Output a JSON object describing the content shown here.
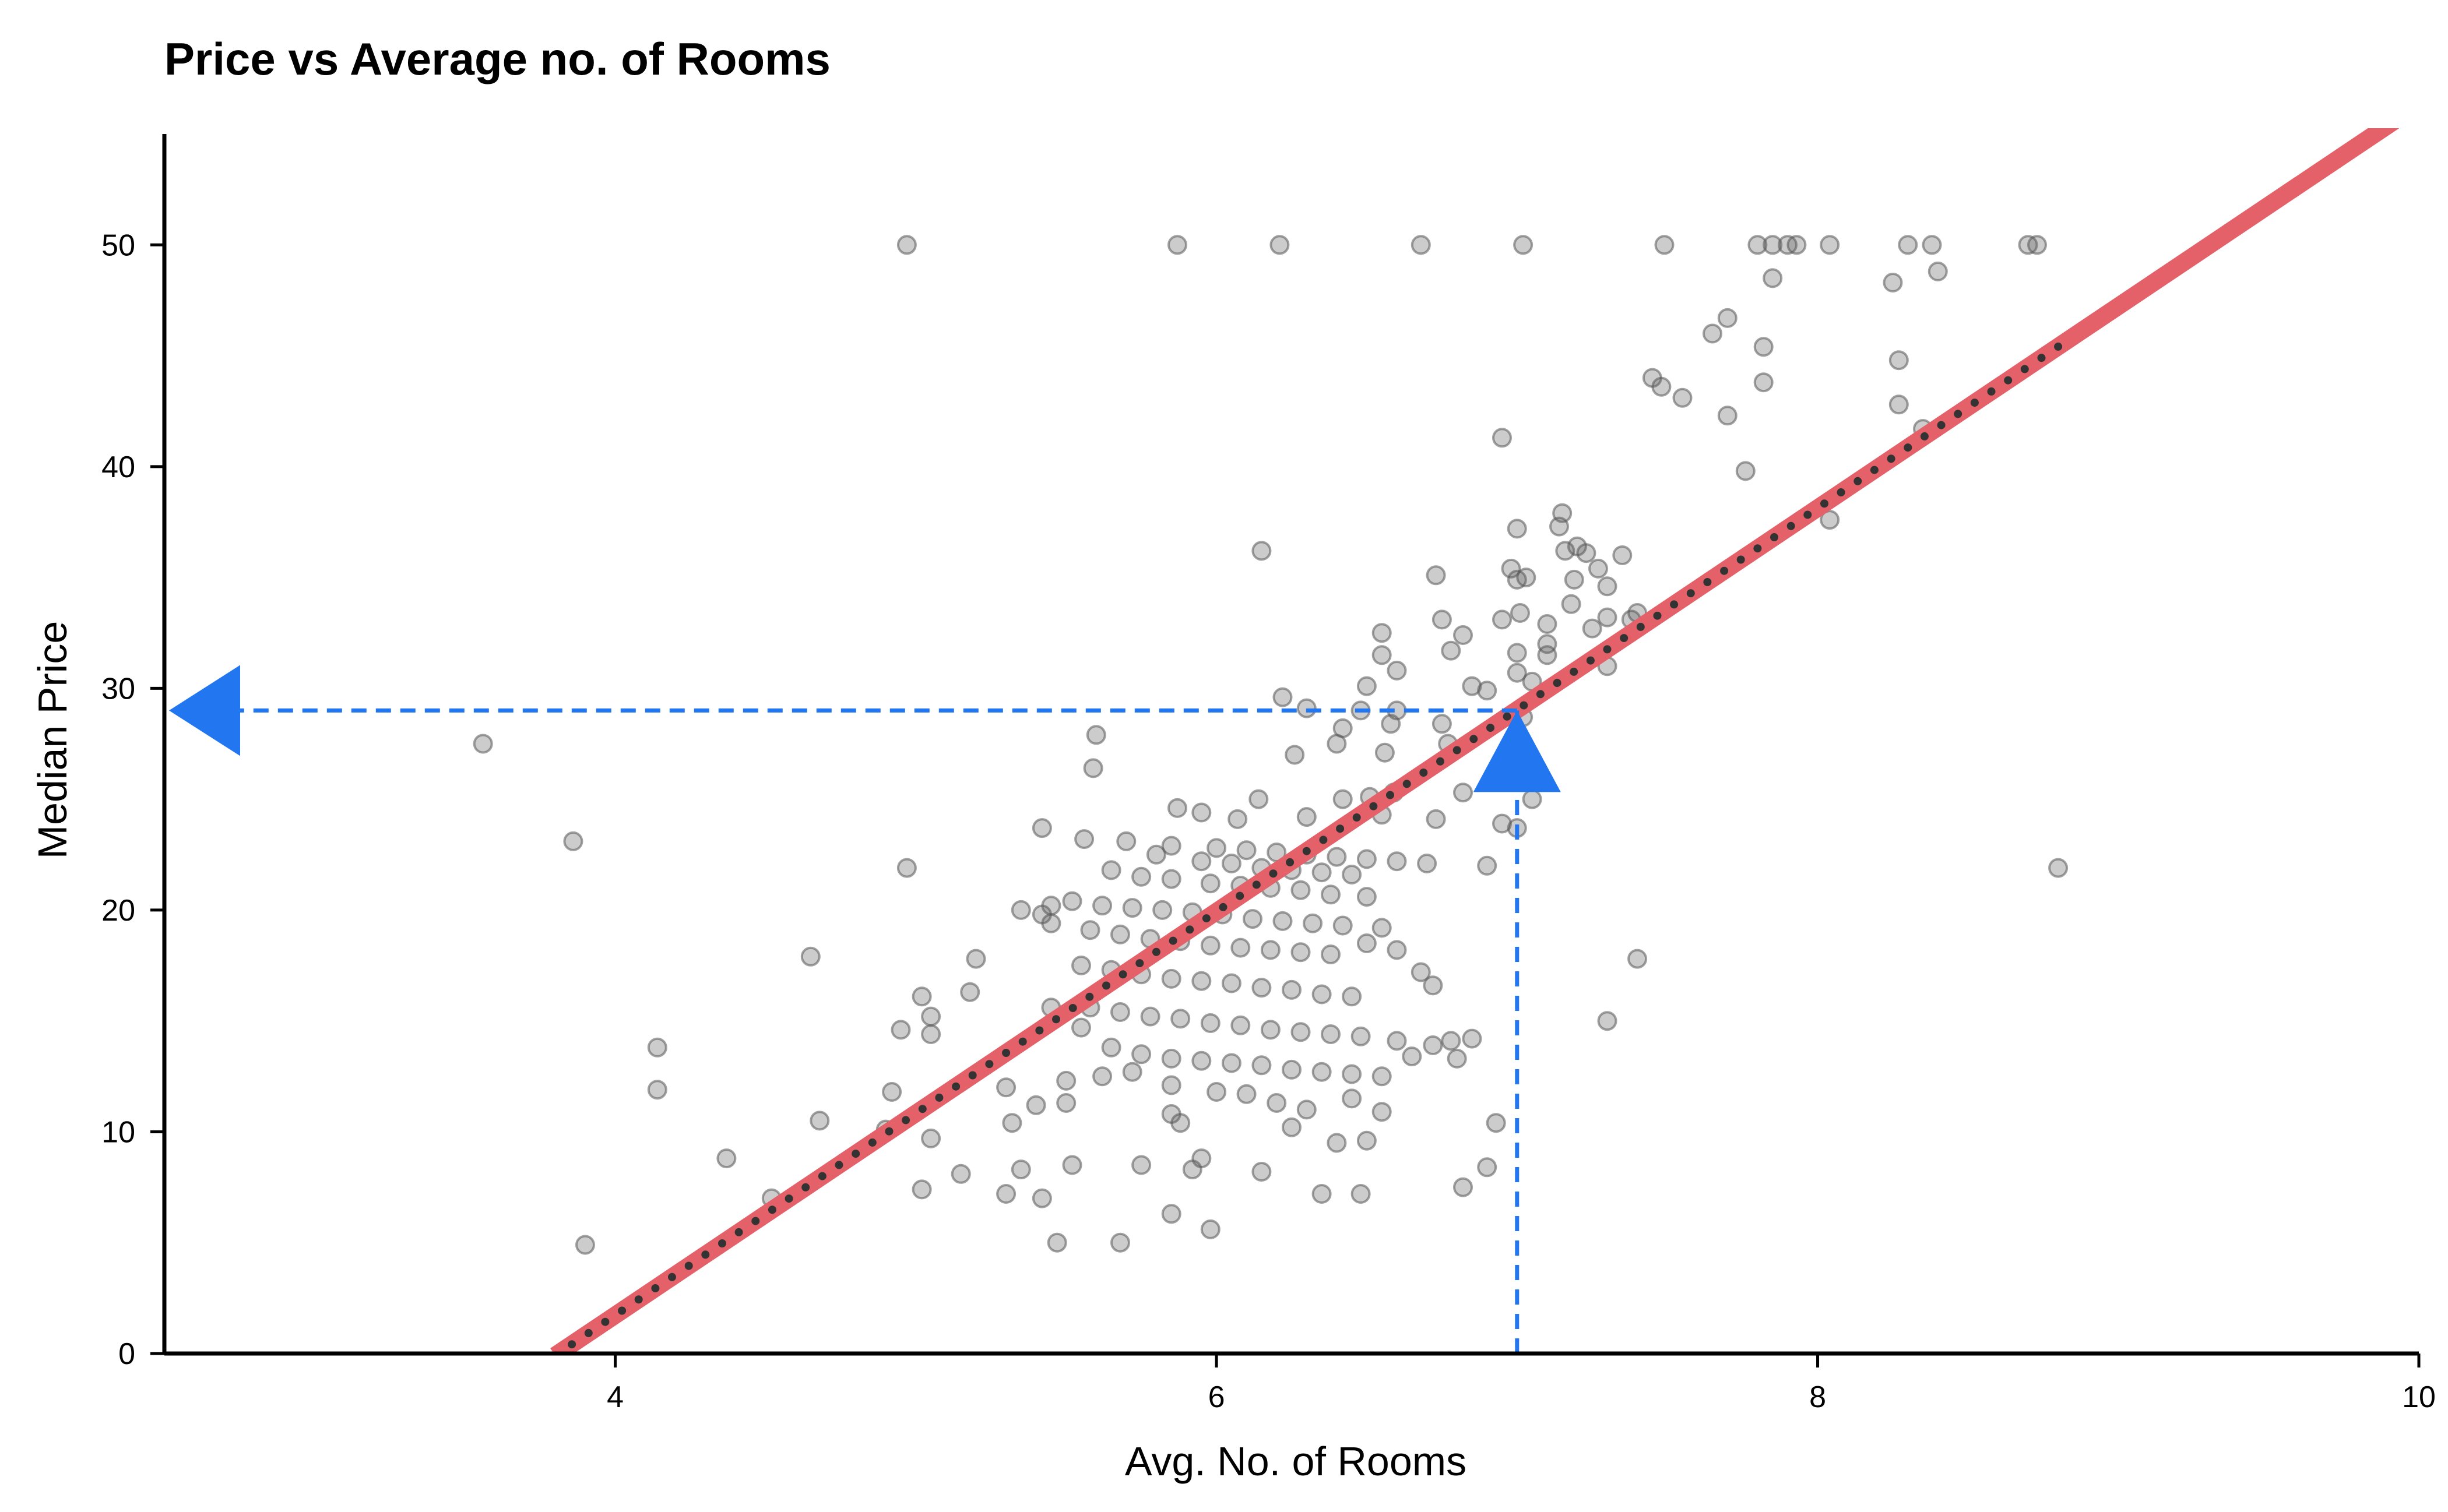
{
  "chart_data": {
    "type": "scatter",
    "title": "Price vs Average no. of Rooms",
    "xlabel": "Avg. No. of Rooms",
    "ylabel": "Median Price",
    "xlim": [
      2.5,
      10
    ],
    "ylim": [
      0,
      55
    ],
    "xticks": [
      4,
      6,
      8,
      10
    ],
    "yticks": [
      0,
      10,
      20,
      30,
      40,
      50
    ],
    "grid": false,
    "colors": {
      "points": "#555555",
      "regression": "#e5616a",
      "regression_dots": "#333333",
      "annotation": "#2277f0"
    },
    "regression": {
      "slope": 9.1,
      "intercept": -34.67,
      "x_range": [
        3.8,
        10
      ],
      "dotted_x_range": [
        3.8,
        8.8
      ]
    },
    "annotation": {
      "x": 7.0,
      "y": 29.0
    },
    "points": [
      [
        4.97,
        50
      ],
      [
        5.87,
        50
      ],
      [
        6.21,
        50
      ],
      [
        6.68,
        50
      ],
      [
        7.02,
        50
      ],
      [
        7.49,
        50
      ],
      [
        7.8,
        50
      ],
      [
        7.85,
        50
      ],
      [
        7.9,
        50
      ],
      [
        7.93,
        50
      ],
      [
        8.04,
        50
      ],
      [
        8.3,
        50
      ],
      [
        8.38,
        50
      ],
      [
        8.7,
        50
      ],
      [
        8.73,
        50
      ],
      [
        8.25,
        48.3
      ],
      [
        8.4,
        48.8
      ],
      [
        7.85,
        48.5
      ],
      [
        8.27,
        44.8
      ],
      [
        7.82,
        45.4
      ],
      [
        7.65,
        46
      ],
      [
        7.7,
        46.7
      ],
      [
        7.45,
        44
      ],
      [
        7.48,
        43.6
      ],
      [
        7.55,
        43.1
      ],
      [
        7.82,
        43.8
      ],
      [
        8.27,
        42.8
      ],
      [
        7.7,
        42.3
      ],
      [
        8.35,
        41.7
      ],
      [
        6.95,
        41.3
      ],
      [
        7.76,
        39.8
      ],
      [
        8.04,
        37.6
      ],
      [
        7.15,
        37.9
      ],
      [
        7.14,
        37.3
      ],
      [
        7.2,
        36.4
      ],
      [
        7.16,
        36.2
      ],
      [
        7.23,
        36.1
      ],
      [
        7.35,
        36
      ],
      [
        6.15,
        36.2
      ],
      [
        7.0,
        37.2
      ],
      [
        6.98,
        35.4
      ],
      [
        7.27,
        35.4
      ],
      [
        6.73,
        35.1
      ],
      [
        7.0,
        34.9
      ],
      [
        7.19,
        34.9
      ],
      [
        7.03,
        35
      ],
      [
        7.3,
        34.6
      ],
      [
        7.18,
        33.8
      ],
      [
        7.4,
        33.4
      ],
      [
        7.38,
        33.1
      ],
      [
        7.3,
        33.2
      ],
      [
        6.75,
        33.1
      ],
      [
        6.95,
        33.1
      ],
      [
        7.01,
        33.4
      ],
      [
        7.25,
        32.7
      ],
      [
        7.1,
        32.9
      ],
      [
        6.55,
        32.5
      ],
      [
        6.82,
        32.4
      ],
      [
        7.1,
        32
      ],
      [
        7.0,
        31.6
      ],
      [
        6.78,
        31.7
      ],
      [
        7.1,
        31.5
      ],
      [
        6.55,
        31.5
      ],
      [
        7.3,
        31
      ],
      [
        6.6,
        30.8
      ],
      [
        7.0,
        30.7
      ],
      [
        6.5,
        30.1
      ],
      [
        6.85,
        30.1
      ],
      [
        6.9,
        29.9
      ],
      [
        7.05,
        30.3
      ],
      [
        6.22,
        29.6
      ],
      [
        6.3,
        29.1
      ],
      [
        6.48,
        29
      ],
      [
        6.6,
        29
      ],
      [
        6.75,
        28.4
      ],
      [
        6.58,
        28.4
      ],
      [
        6.42,
        28.2
      ],
      [
        7.02,
        28.7
      ],
      [
        6.77,
        27.5
      ],
      [
        6.4,
        27.5
      ],
      [
        6.56,
        27.1
      ],
      [
        6.26,
        27
      ],
      [
        5.6,
        27.9
      ],
      [
        5.59,
        26.4
      ],
      [
        3.56,
        27.5
      ],
      [
        7.05,
        25
      ],
      [
        6.82,
        25.3
      ],
      [
        6.59,
        25.3
      ],
      [
        6.51,
        25.1
      ],
      [
        6.42,
        25
      ],
      [
        6.14,
        25
      ],
      [
        5.87,
        24.6
      ],
      [
        5.95,
        24.4
      ],
      [
        6.07,
        24.1
      ],
      [
        6.3,
        24.2
      ],
      [
        6.55,
        24.3
      ],
      [
        6.73,
        24.1
      ],
      [
        6.95,
        23.9
      ],
      [
        7.0,
        23.7
      ],
      [
        5.42,
        23.7
      ],
      [
        5.56,
        23.2
      ],
      [
        5.7,
        23.1
      ],
      [
        5.85,
        22.9
      ],
      [
        6.0,
        22.8
      ],
      [
        6.1,
        22.7
      ],
      [
        6.2,
        22.6
      ],
      [
        6.3,
        22.5
      ],
      [
        6.4,
        22.4
      ],
      [
        6.5,
        22.3
      ],
      [
        6.6,
        22.2
      ],
      [
        6.7,
        22.1
      ],
      [
        6.9,
        22
      ],
      [
        5.8,
        22.5
      ],
      [
        5.95,
        22.2
      ],
      [
        6.05,
        22.1
      ],
      [
        6.15,
        21.9
      ],
      [
        6.25,
        21.8
      ],
      [
        6.35,
        21.7
      ],
      [
        6.45,
        21.6
      ],
      [
        5.65,
        21.8
      ],
      [
        5.75,
        21.5
      ],
      [
        5.85,
        21.4
      ],
      [
        5.98,
        21.2
      ],
      [
        6.08,
        21.1
      ],
      [
        6.18,
        21
      ],
      [
        6.28,
        20.9
      ],
      [
        6.38,
        20.7
      ],
      [
        6.5,
        20.6
      ],
      [
        4.97,
        21.9
      ],
      [
        8.8,
        21.9
      ],
      [
        3.86,
        23.1
      ],
      [
        5.52,
        20.4
      ],
      [
        5.62,
        20.2
      ],
      [
        5.72,
        20.1
      ],
      [
        5.82,
        20
      ],
      [
        5.92,
        19.9
      ],
      [
        6.02,
        19.8
      ],
      [
        6.12,
        19.6
      ],
      [
        6.22,
        19.5
      ],
      [
        6.32,
        19.4
      ],
      [
        6.42,
        19.3
      ],
      [
        6.55,
        19.2
      ],
      [
        5.42,
        19.8
      ],
      [
        5.45,
        19.4
      ],
      [
        5.35,
        20
      ],
      [
        5.45,
        20.2
      ],
      [
        5.58,
        19.1
      ],
      [
        5.68,
        18.9
      ],
      [
        5.78,
        18.7
      ],
      [
        5.88,
        18.6
      ],
      [
        5.98,
        18.4
      ],
      [
        6.08,
        18.3
      ],
      [
        6.18,
        18.2
      ],
      [
        6.28,
        18.1
      ],
      [
        6.38,
        18
      ],
      [
        6.5,
        18.5
      ],
      [
        6.6,
        18.2
      ],
      [
        4.65,
        17.9
      ],
      [
        7.4,
        17.8
      ],
      [
        5.2,
        17.8
      ],
      [
        5.55,
        17.5
      ],
      [
        5.65,
        17.3
      ],
      [
        5.75,
        17.1
      ],
      [
        5.85,
        16.9
      ],
      [
        5.95,
        16.8
      ],
      [
        6.05,
        16.7
      ],
      [
        6.15,
        16.5
      ],
      [
        6.25,
        16.4
      ],
      [
        6.35,
        16.2
      ],
      [
        6.45,
        16.1
      ],
      [
        6.68,
        17.2
      ],
      [
        6.72,
        16.6
      ],
      [
        5.02,
        16.1
      ],
      [
        5.18,
        16.3
      ],
      [
        5.58,
        15.6
      ],
      [
        5.68,
        15.4
      ],
      [
        5.78,
        15.2
      ],
      [
        5.88,
        15.1
      ],
      [
        5.98,
        14.9
      ],
      [
        6.08,
        14.8
      ],
      [
        6.18,
        14.6
      ],
      [
        6.28,
        14.5
      ],
      [
        6.38,
        14.4
      ],
      [
        6.48,
        14.3
      ],
      [
        6.6,
        14.1
      ],
      [
        6.78,
        14.1
      ],
      [
        6.85,
        14.2
      ],
      [
        7.3,
        15
      ],
      [
        5.05,
        15.2
      ],
      [
        4.95,
        14.6
      ],
      [
        5.05,
        14.4
      ],
      [
        5.45,
        15.6
      ],
      [
        5.55,
        14.7
      ],
      [
        5.65,
        13.8
      ],
      [
        5.75,
        13.5
      ],
      [
        5.85,
        13.3
      ],
      [
        5.95,
        13.2
      ],
      [
        6.05,
        13.1
      ],
      [
        6.15,
        13
      ],
      [
        6.25,
        12.8
      ],
      [
        6.35,
        12.7
      ],
      [
        6.45,
        12.6
      ],
      [
        6.55,
        12.5
      ],
      [
        6.65,
        13.4
      ],
      [
        6.72,
        13.9
      ],
      [
        6.8,
        13.3
      ],
      [
        4.14,
        13.8
      ],
      [
        4.14,
        11.9
      ],
      [
        5.3,
        12
      ],
      [
        5.5,
        12.3
      ],
      [
        5.62,
        12.5
      ],
      [
        5.72,
        12.7
      ],
      [
        5.85,
        12.1
      ],
      [
        6.0,
        11.8
      ],
      [
        6.1,
        11.7
      ],
      [
        6.2,
        11.3
      ],
      [
        6.3,
        11
      ],
      [
        6.45,
        11.5
      ],
      [
        6.55,
        10.9
      ],
      [
        5.5,
        11.3
      ],
      [
        4.92,
        11.8
      ],
      [
        5.32,
        10.4
      ],
      [
        5.4,
        11.2
      ],
      [
        5.85,
        10.8
      ],
      [
        5.88,
        10.4
      ],
      [
        6.25,
        10.2
      ],
      [
        6.93,
        10.4
      ],
      [
        4.68,
        10.5
      ],
      [
        5.05,
        9.7
      ],
      [
        4.9,
        10.1
      ],
      [
        6.4,
        9.5
      ],
      [
        6.5,
        9.6
      ],
      [
        4.37,
        8.8
      ],
      [
        5.35,
        8.3
      ],
      [
        5.52,
        8.5
      ],
      [
        5.75,
        8.5
      ],
      [
        5.95,
        8.8
      ],
      [
        6.15,
        8.2
      ],
      [
        6.9,
        8.4
      ],
      [
        5.92,
        8.3
      ],
      [
        5.15,
        8.1
      ],
      [
        4.52,
        7
      ],
      [
        5.02,
        7.4
      ],
      [
        5.3,
        7.2
      ],
      [
        5.42,
        7
      ],
      [
        5.85,
        6.3
      ],
      [
        6.35,
        7.2
      ],
      [
        6.48,
        7.2
      ],
      [
        6.82,
        7.5
      ],
      [
        5.47,
        5
      ],
      [
        5.68,
        5
      ],
      [
        5.98,
        5.6
      ],
      [
        3.9,
        4.9
      ]
    ]
  }
}
